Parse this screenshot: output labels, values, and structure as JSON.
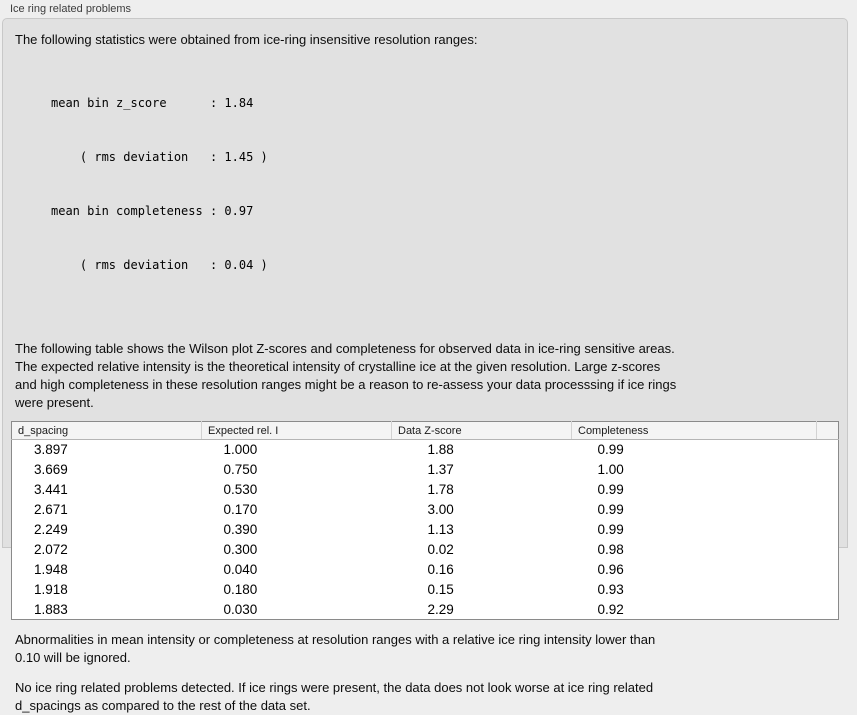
{
  "panel": {
    "title": "Ice ring related problems"
  },
  "intro": {
    "text": "The following statistics were obtained from ice-ring insensitive resolution ranges:"
  },
  "stats_block": {
    "lines": [
      "mean bin z_score      : 1.84",
      "    ( rms deviation   : 1.45 )",
      "mean bin completeness : 0.97",
      "    ( rms deviation   : 0.04 )"
    ]
  },
  "description": {
    "lines": [
      "The following table shows the Wilson plot Z-scores and completeness for observed data in ice-ring sensitive areas.",
      "The expected relative intensity is the theoretical intensity of crystalline ice at the given resolution. Large z-scores",
      "and high completeness in these resolution ranges might be a reason to re-assess your data processsing if ice rings",
      "were present."
    ]
  },
  "table": {
    "columns": [
      "d_spacing",
      "Expected rel. I",
      "Data Z-score",
      "Completeness"
    ],
    "rows": [
      {
        "d_spacing": "3.897",
        "expected_rel_i": "1.000",
        "data_z_score": "1.88",
        "completeness": "0.99"
      },
      {
        "d_spacing": "3.669",
        "expected_rel_i": "0.750",
        "data_z_score": "1.37",
        "completeness": "1.00"
      },
      {
        "d_spacing": "3.441",
        "expected_rel_i": "0.530",
        "data_z_score": "1.78",
        "completeness": "0.99"
      },
      {
        "d_spacing": "2.671",
        "expected_rel_i": "0.170",
        "data_z_score": "3.00",
        "completeness": "0.99"
      },
      {
        "d_spacing": "2.249",
        "expected_rel_i": "0.390",
        "data_z_score": "1.13",
        "completeness": "0.99"
      },
      {
        "d_spacing": "2.072",
        "expected_rel_i": "0.300",
        "data_z_score": "0.02",
        "completeness": "0.98"
      },
      {
        "d_spacing": "1.948",
        "expected_rel_i": "0.040",
        "data_z_score": "0.16",
        "completeness": "0.96"
      },
      {
        "d_spacing": "1.918",
        "expected_rel_i": "0.180",
        "data_z_score": "0.15",
        "completeness": "0.93"
      },
      {
        "d_spacing": "1.883",
        "expected_rel_i": "0.030",
        "data_z_score": "2.29",
        "completeness": "0.92"
      }
    ]
  },
  "ignore_note": {
    "lines": [
      "Abnormalities in mean intensity or completeness at resolution ranges with a relative ice ring intensity lower than",
      "0.10 will be ignored."
    ]
  },
  "conclusion": {
    "lines": [
      "No ice ring related problems detected. If ice rings were present, the data does not look worse at ice ring related",
      "d_spacings as compared to the rest of the data set."
    ]
  },
  "colors": {
    "outer_background": "#eeeeee",
    "groupbox_background": "#e1e1e1",
    "groupbox_border": "#c8c8c8",
    "table_background": "#ffffff",
    "table_border": "#8a8a8a",
    "table_header_background": "#f4f4f4",
    "text": "#0c0c0c"
  }
}
